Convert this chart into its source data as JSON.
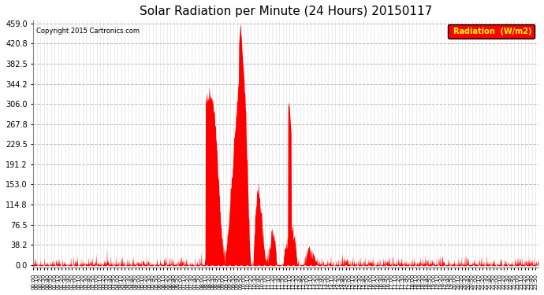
{
  "title": "Solar Radiation per Minute (24 Hours) 20150117",
  "copyright_text": "Copyright 2015 Cartronics.com",
  "fill_color": "#FF0000",
  "line_color": "#FF0000",
  "background_color": "#FFFFFF",
  "grid_color": "#AAAAAA",
  "yticks": [
    0.0,
    38.2,
    76.5,
    114.8,
    153.0,
    191.2,
    229.5,
    267.8,
    306.0,
    344.2,
    382.5,
    420.8,
    459.0
  ],
  "ylim": [
    -5,
    465
  ],
  "total_minutes": 1440,
  "sunrise_minute": 490,
  "sunset_minute": 990,
  "peak_minute": 590,
  "peak_value": 459.0,
  "legend_label": "Radiation  (W/m2)",
  "legend_bg": "#FF0000",
  "legend_text_color": "#FFFF00"
}
